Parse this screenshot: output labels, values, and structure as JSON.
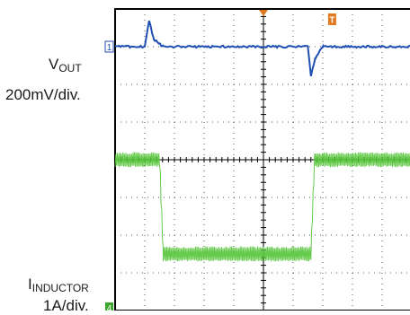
{
  "labels": {
    "vout_main": "V",
    "vout_sub": "OUT",
    "vout_scale": "200mV/div.",
    "iind_main": "I",
    "iind_sub": "INDUCTOR",
    "iind_scale": "1A/div."
  },
  "markers": {
    "ch1": "1",
    "ch4": "4",
    "trigger": "T"
  },
  "colors": {
    "grid": "#000000",
    "vout_trace": "#1f4fb0",
    "inductor_trace": "#55c43a",
    "trigger_marker": "#e07a20",
    "ch1_marker": "#1f4fb0",
    "ch4_marker": "#3aa82a"
  },
  "chart_data": {
    "type": "line",
    "grid": true,
    "divisions": {
      "x": 10,
      "y": 8
    },
    "series": [
      {
        "x": [
          0,
          1,
          1.15,
          1.3,
          1.6,
          6.5,
          6.6,
          6.75,
          7.0,
          10
        ],
        "values": [
          0,
          0,
          0.7,
          0.2,
          0,
          0,
          -0.8,
          -0.3,
          0,
          0
        ],
        "baseline_div": 3.0
      },
      {
        "x": [
          0,
          1.5,
          1.62,
          6.6,
          6.72,
          10
        ],
        "values": [
          0,
          0,
          -2.5,
          -2.5,
          0,
          0
        ],
        "baseline_div": 0.0,
        "ripple_div": 0.4
      }
    ]
  }
}
